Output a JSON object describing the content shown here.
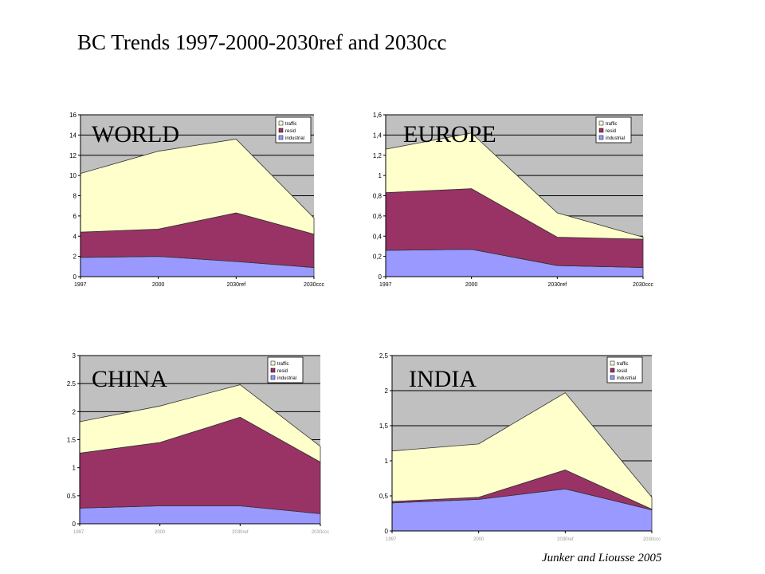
{
  "title": "BC Trends 1997-2000-2030ref and 2030cc",
  "credit": "Junker and Liousse 2005",
  "colors": {
    "traffic": "#ffffcc",
    "resid": "#993366",
    "industrial": "#9999ff",
    "plot_bg": "#c0c0c0"
  },
  "chart_data": [
    {
      "type": "area",
      "stacked": true,
      "label": "WORLD",
      "categories": [
        "1997",
        "2000",
        "2030ref",
        "2030ccc"
      ],
      "ylim": [
        0,
        16
      ],
      "yticks": [
        "0",
        "2",
        "4",
        "6",
        "8",
        "10",
        "12",
        "14",
        "16"
      ],
      "legend": [
        "traffic",
        "resid",
        "industrial"
      ],
      "series": [
        {
          "name": "industrial",
          "values": [
            1.9,
            2.0,
            1.5,
            0.9
          ]
        },
        {
          "name": "resid",
          "values": [
            2.5,
            2.7,
            4.8,
            3.3
          ]
        },
        {
          "name": "traffic",
          "values": [
            5.8,
            7.7,
            7.3,
            1.6
          ]
        }
      ]
    },
    {
      "type": "area",
      "stacked": true,
      "label": "EUROPE",
      "categories": [
        "1997",
        "2000",
        "2030ref",
        "2030ccc"
      ],
      "ylim": [
        0,
        1.6
      ],
      "yticks": [
        "0",
        "0,2",
        "0,4",
        "0,6",
        "0,8",
        "1",
        "1,2",
        "1,4",
        "1,6"
      ],
      "legend": [
        "traffic",
        "resid",
        "industrial"
      ],
      "series": [
        {
          "name": "industrial",
          "values": [
            0.26,
            0.27,
            0.11,
            0.09
          ]
        },
        {
          "name": "resid",
          "values": [
            0.57,
            0.6,
            0.28,
            0.28
          ]
        },
        {
          "name": "traffic",
          "values": [
            0.43,
            0.55,
            0.24,
            0.02
          ]
        }
      ]
    },
    {
      "type": "area",
      "stacked": true,
      "label": "CHINA",
      "categories": [
        "1997",
        "2000",
        "2030ref",
        "2030ccc"
      ],
      "ylim": [
        0,
        3
      ],
      "yticks": [
        "0",
        "0.5",
        "1",
        "1.5",
        "2",
        "2.5",
        "3"
      ],
      "legend": [
        "traffic",
        "resid",
        "industrial"
      ],
      "series": [
        {
          "name": "industrial",
          "values": [
            0.28,
            0.32,
            0.32,
            0.18
          ]
        },
        {
          "name": "resid",
          "values": [
            0.98,
            1.13,
            1.58,
            0.92
          ]
        },
        {
          "name": "traffic",
          "values": [
            0.56,
            0.65,
            0.58,
            0.28
          ]
        }
      ]
    },
    {
      "type": "area",
      "stacked": true,
      "label": "INDIA",
      "categories": [
        "1997",
        "2000",
        "2030ref",
        "2030ccc"
      ],
      "ylim": [
        0,
        2.5
      ],
      "yticks": [
        "0",
        "0,5",
        "1",
        "1,5",
        "2",
        "2,5"
      ],
      "legend": [
        "traffic",
        "resid",
        "industrial"
      ],
      "series": [
        {
          "name": "industrial",
          "values": [
            0.4,
            0.45,
            0.6,
            0.3
          ]
        },
        {
          "name": "resid",
          "values": [
            0.02,
            0.03,
            0.27,
            0.01
          ]
        },
        {
          "name": "traffic",
          "values": [
            0.72,
            0.76,
            1.1,
            0.17
          ]
        }
      ]
    }
  ]
}
